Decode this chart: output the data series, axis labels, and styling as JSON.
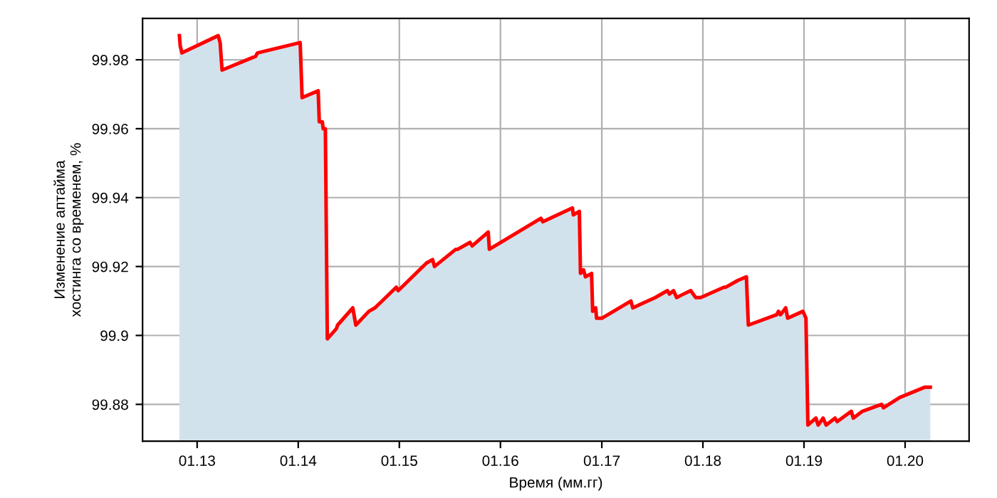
{
  "chart_data": {
    "type": "area",
    "xlabel": "Время (мм.гг)",
    "ylabel": "Изменение аптайма\nхостинга со временем, %",
    "xlim": [
      "2012-06-18",
      "2020-08-19"
    ],
    "ylim": [
      99.8693,
      99.992
    ],
    "xticks": [
      {
        "value": "2013-01-01",
        "label": "01.13"
      },
      {
        "value": "2014-01-01",
        "label": "01.14"
      },
      {
        "value": "2015-01-01",
        "label": "01.15"
      },
      {
        "value": "2016-01-01",
        "label": "01.16"
      },
      {
        "value": "2017-01-01",
        "label": "01.17"
      },
      {
        "value": "2018-01-01",
        "label": "01.18"
      },
      {
        "value": "2019-01-01",
        "label": "01.19"
      },
      {
        "value": "2020-01-01",
        "label": "01.20"
      }
    ],
    "yticks": [
      99.88,
      99.9,
      99.92,
      99.94,
      99.96,
      99.98
    ],
    "grid": true,
    "series": [
      {
        "color": "#ff0000",
        "x": [
          "2012-10-29",
          "2012-11-01",
          "2012-11-07",
          "2013-03-18",
          "2013-03-25",
          "2013-04-01",
          "2013-07-31",
          "2013-08-07",
          "2014-01-08",
          "2014-01-15",
          "2014-03-14",
          "2014-03-18",
          "2014-03-29",
          "2014-04-01",
          "2014-04-09",
          "2014-04-16",
          "2014-05-19",
          "2014-05-23",
          "2014-07-17",
          "2014-07-28",
          "2014-09-13",
          "2014-10-05",
          "2014-12-21",
          "2014-12-28",
          "2015-04-09",
          "2015-05-01",
          "2015-05-08",
          "2015-07-24",
          "2015-07-31",
          "2015-09-13",
          "2015-09-21",
          "2015-11-18",
          "2015-11-22",
          "2016-05-26",
          "2016-06-02",
          "2016-09-17",
          "2016-09-20",
          "2016-10-12",
          "2016-10-16",
          "2016-10-27",
          "2016-11-03",
          "2016-11-25",
          "2016-11-29",
          "2016-12-10",
          "2016-12-13",
          "2017-01-01",
          "2017-04-16",
          "2017-04-23",
          "2017-05-19",
          "2017-07-13",
          "2017-08-26",
          "2017-09-02",
          "2017-09-17",
          "2017-09-28",
          "2017-10-23",
          "2017-11-18",
          "2017-12-06",
          "2017-12-24",
          "2018-03-18",
          "2018-03-25",
          "2018-05-08",
          "2018-06-07",
          "2018-06-14",
          "2018-09-24",
          "2018-10-01",
          "2018-10-08",
          "2018-10-27",
          "2018-11-03",
          "2018-12-28",
          "2019-01-08",
          "2019-01-15",
          "2019-02-13",
          "2019-02-21",
          "2019-03-11",
          "2019-03-22",
          "2019-04-23",
          "2019-05-01",
          "2019-06-21",
          "2019-06-28",
          "2019-07-31",
          "2019-10-08",
          "2019-10-15",
          "2019-12-13",
          "2020-03-13",
          "2020-04-01"
        ],
        "values": [
          99.987,
          99.984,
          99.982,
          99.987,
          99.985,
          99.977,
          99.981,
          99.982,
          99.985,
          99.969,
          99.971,
          99.962,
          99.962,
          99.96,
          99.96,
          99.899,
          99.902,
          99.903,
          99.908,
          99.903,
          99.907,
          99.908,
          99.914,
          99.913,
          99.921,
          99.922,
          99.92,
          99.925,
          99.925,
          99.927,
          99.926,
          99.93,
          99.925,
          99.934,
          99.933,
          99.937,
          99.935,
          99.936,
          99.918,
          99.919,
          99.917,
          99.918,
          99.907,
          99.908,
          99.905,
          99.905,
          99.91,
          99.908,
          99.909,
          99.911,
          99.913,
          99.912,
          99.913,
          99.911,
          99.912,
          99.913,
          99.911,
          99.911,
          99.914,
          99.914,
          99.916,
          99.917,
          99.903,
          99.906,
          99.907,
          99.906,
          99.908,
          99.905,
          99.907,
          99.905,
          99.874,
          99.876,
          99.874,
          99.876,
          99.874,
          99.876,
          99.875,
          99.878,
          99.876,
          99.878,
          99.88,
          99.879,
          99.882,
          99.885,
          99.885
        ]
      }
    ]
  }
}
